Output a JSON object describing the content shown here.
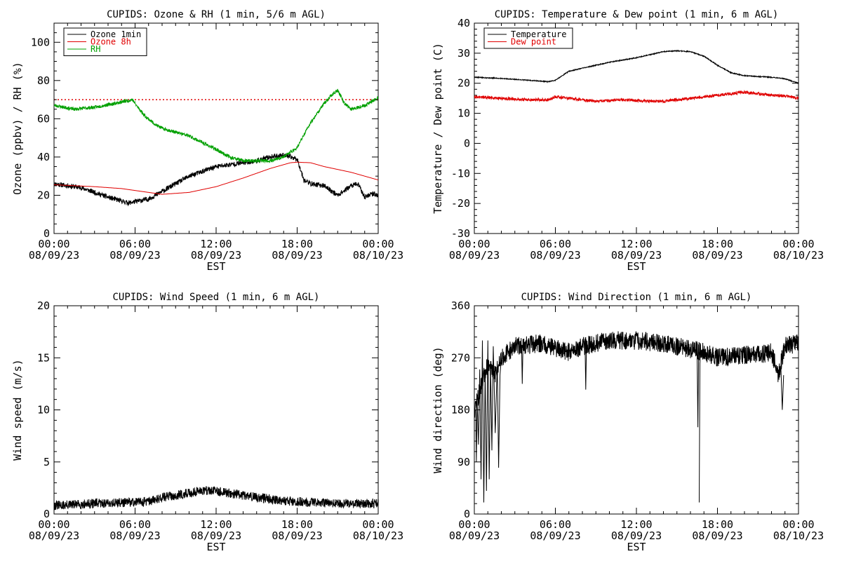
{
  "chart_data": [
    {
      "type": "line",
      "title": "CUPIDS: Ozone & RH (1 min, 5/6 m AGL)",
      "xlabel": "EST",
      "ylabel": "Ozone (ppbv) / RH (%)",
      "ylim": [
        0,
        110
      ],
      "yticks": [
        "0",
        "20",
        "40",
        "60",
        "80",
        "100"
      ],
      "xticks": [
        {
          "time": "00:00",
          "date": "08/09/23"
        },
        {
          "time": "06:00",
          "date": "08/09/23"
        },
        {
          "time": "12:00",
          "date": "08/09/23"
        },
        {
          "time": "18:00",
          "date": "08/09/23"
        },
        {
          "time": "00:00",
          "date": "08/10/23"
        }
      ],
      "xlim_hours": [
        0,
        24
      ],
      "legend_position": "top-left",
      "reference_line": {
        "y": 70,
        "color": "#e00000",
        "style": "dotted"
      },
      "series": [
        {
          "name": "Ozone 1min",
          "color": "#000000",
          "noise": 1.3,
          "seed": 11,
          "points": [
            [
              0,
              26
            ],
            [
              2,
              24
            ],
            [
              4,
              19
            ],
            [
              5.5,
              16
            ],
            [
              7,
              18
            ],
            [
              8,
              22
            ],
            [
              10,
              30
            ],
            [
              12,
              35
            ],
            [
              14,
              37
            ],
            [
              15,
              38
            ],
            [
              16,
              40
            ],
            [
              17,
              41
            ],
            [
              18,
              39
            ],
            [
              18.5,
              28
            ],
            [
              19,
              26
            ],
            [
              20,
              25
            ],
            [
              21,
              20
            ],
            [
              22,
              25
            ],
            [
              22.5,
              26
            ],
            [
              23,
              19
            ],
            [
              23.5,
              21
            ],
            [
              24,
              20
            ]
          ]
        },
        {
          "name": "Ozone 8h",
          "color": "#e00000",
          "noise": 0,
          "seed": 1,
          "points": [
            [
              0,
              25.5
            ],
            [
              3,
              24.5
            ],
            [
              5,
              23.5
            ],
            [
              7,
              21.5
            ],
            [
              8,
              20.5
            ],
            [
              10,
              21.5
            ],
            [
              12,
              24.5
            ],
            [
              14,
              29
            ],
            [
              16,
              34
            ],
            [
              17.5,
              37
            ],
            [
              18,
              37.3
            ],
            [
              19,
              37
            ],
            [
              20,
              35
            ],
            [
              22,
              32
            ],
            [
              24,
              28
            ]
          ]
        },
        {
          "name": "RH",
          "color": "#00a000",
          "noise": 0.9,
          "seed": 23,
          "points": [
            [
              0,
              67
            ],
            [
              1.5,
              65
            ],
            [
              3,
              66
            ],
            [
              4.5,
              68
            ],
            [
              5.8,
              70
            ],
            [
              6.2,
              66
            ],
            [
              6.8,
              61
            ],
            [
              7.5,
              57
            ],
            [
              8,
              55
            ],
            [
              10,
              51
            ],
            [
              12,
              44
            ],
            [
              13,
              40
            ],
            [
              14,
              38
            ],
            [
              15,
              38
            ],
            [
              16,
              38
            ],
            [
              17,
              40
            ],
            [
              18,
              45
            ],
            [
              19,
              58
            ],
            [
              20,
              68
            ],
            [
              20.5,
              72
            ],
            [
              21,
              75
            ],
            [
              21.5,
              68
            ],
            [
              22,
              65
            ],
            [
              23,
              67
            ],
            [
              23.5,
              69
            ],
            [
              24,
              71
            ]
          ]
        }
      ]
    },
    {
      "type": "line",
      "title": "CUPIDS: Temperature & Dew point (1 min, 6 m AGL)",
      "xlabel": "EST",
      "ylabel": "Temperature / Dew point (C)",
      "ylim": [
        -30,
        40
      ],
      "yticks": [
        "-30",
        "-20",
        "-10",
        "0",
        "10",
        "20",
        "30",
        "40"
      ],
      "xticks": [
        {
          "time": "00:00",
          "date": "08/09/23"
        },
        {
          "time": "06:00",
          "date": "08/09/23"
        },
        {
          "time": "12:00",
          "date": "08/09/23"
        },
        {
          "time": "18:00",
          "date": "08/09/23"
        },
        {
          "time": "00:00",
          "date": "08/10/23"
        }
      ],
      "xlim_hours": [
        0,
        24
      ],
      "legend_position": "top-left",
      "series": [
        {
          "name": "Temperature",
          "color": "#000000",
          "noise": 0.15,
          "seed": 5,
          "points": [
            [
              0,
              22
            ],
            [
              2,
              21.6
            ],
            [
              4,
              21
            ],
            [
              5.5,
              20.5
            ],
            [
              6,
              21
            ],
            [
              7,
              24
            ],
            [
              8,
              25
            ],
            [
              10,
              27
            ],
            [
              12,
              28.5
            ],
            [
              13,
              29.5
            ],
            [
              14,
              30.5
            ],
            [
              15,
              30.8
            ],
            [
              16,
              30.5
            ],
            [
              17,
              29
            ],
            [
              18,
              26
            ],
            [
              19,
              23.5
            ],
            [
              20,
              22.5
            ],
            [
              22,
              22
            ],
            [
              23,
              21.5
            ],
            [
              24,
              20
            ]
          ]
        },
        {
          "name": "Dew point",
          "color": "#e00000",
          "noise": 0.5,
          "seed": 9,
          "points": [
            [
              0,
              15.5
            ],
            [
              2,
              15
            ],
            [
              4,
              14.5
            ],
            [
              5.5,
              14.5
            ],
            [
              6,
              15.5
            ],
            [
              7,
              15
            ],
            [
              9,
              14
            ],
            [
              11,
              14.5
            ],
            [
              13,
              14
            ],
            [
              14,
              14
            ],
            [
              16,
              15
            ],
            [
              18,
              16
            ],
            [
              19,
              16.5
            ],
            [
              20,
              17
            ],
            [
              21,
              16.5
            ],
            [
              22,
              16
            ],
            [
              23,
              15.8
            ],
            [
              24,
              15
            ]
          ]
        }
      ]
    },
    {
      "type": "line",
      "title": "CUPIDS: Wind Speed (1 min, 6 m AGL)",
      "xlabel": "EST",
      "ylabel": "Wind speed (m/s)",
      "ylim": [
        0,
        20
      ],
      "yticks": [
        "0",
        "5",
        "10",
        "15",
        "20"
      ],
      "xticks": [
        {
          "time": "00:00",
          "date": "08/09/23"
        },
        {
          "time": "06:00",
          "date": "08/09/23"
        },
        {
          "time": "12:00",
          "date": "08/09/23"
        },
        {
          "time": "18:00",
          "date": "08/09/23"
        },
        {
          "time": "00:00",
          "date": "08/10/23"
        }
      ],
      "xlim_hours": [
        0,
        24
      ],
      "series": [
        {
          "name": "",
          "color": "#000000",
          "noise": 0.45,
          "seed": 31,
          "points": [
            [
              0,
              0.8
            ],
            [
              3,
              1.0
            ],
            [
              5,
              1.1
            ],
            [
              7,
              1.2
            ],
            [
              8,
              1.6
            ],
            [
              10,
              2.0
            ],
            [
              11,
              2.3
            ],
            [
              12,
              2.2
            ],
            [
              13,
              2.0
            ],
            [
              14,
              1.8
            ],
            [
              15,
              1.6
            ],
            [
              17,
              1.3
            ],
            [
              19,
              1.1
            ],
            [
              21,
              1.0
            ],
            [
              23,
              1.0
            ],
            [
              24,
              1.0
            ]
          ]
        }
      ]
    },
    {
      "type": "line",
      "title": "CUPIDS: Wind Direction (1 min, 6 m AGL)",
      "xlabel": "EST",
      "ylabel": "Wind direction (deg)",
      "ylim": [
        0,
        360
      ],
      "yticks": [
        "0",
        "90",
        "180",
        "270",
        "360"
      ],
      "xticks": [
        {
          "time": "00:00",
          "date": "08/09/23"
        },
        {
          "time": "06:00",
          "date": "08/09/23"
        },
        {
          "time": "12:00",
          "date": "08/09/23"
        },
        {
          "time": "18:00",
          "date": "08/09/23"
        },
        {
          "time": "00:00",
          "date": "08/10/23"
        }
      ],
      "xlim_hours": [
        0,
        24
      ],
      "series": [
        {
          "name": "",
          "color": "#000000",
          "noise": 16,
          "seed": 47,
          "points": [
            [
              0,
              180
            ],
            [
              0.5,
              220
            ],
            [
              1,
              260
            ],
            [
              1.5,
              240
            ],
            [
              2,
              270
            ],
            [
              3,
              290
            ],
            [
              5,
              295
            ],
            [
              7,
              280
            ],
            [
              8,
              290
            ],
            [
              10,
              300
            ],
            [
              12,
              300
            ],
            [
              14,
              295
            ],
            [
              16,
              285
            ],
            [
              17,
              280
            ],
            [
              18,
              270
            ],
            [
              20,
              275
            ],
            [
              21,
              275
            ],
            [
              22,
              280
            ],
            [
              22.5,
              240
            ],
            [
              23,
              290
            ],
            [
              24,
              295
            ]
          ]
        },
        {
          "name": "",
          "color": "#000000",
          "noise": 0,
          "seed": 2,
          "spikes": true,
          "points": [
            [
              0.1,
              180
            ],
            [
              0.15,
              90
            ],
            [
              0.2,
              200
            ],
            [
              0.3,
              120
            ],
            [
              0.4,
              250
            ],
            [
              0.5,
              60
            ],
            [
              0.6,
              300
            ],
            [
              0.7,
              20
            ],
            [
              0.8,
              250
            ],
            [
              0.9,
              40
            ],
            [
              1.0,
              300
            ],
            [
              1.1,
              60
            ],
            [
              1.2,
              260
            ],
            [
              1.3,
              110
            ],
            [
              1.4,
              290
            ],
            [
              1.55,
              140
            ],
            [
              1.7,
              260
            ],
            [
              1.8,
              80
            ],
            [
              1.9,
              240
            ],
            [
              2.0,
              270
            ]
          ]
        },
        {
          "name": "",
          "color": "#000000",
          "noise": 0,
          "seed": 3,
          "spikes": true,
          "points": [
            [
              16.5,
              270
            ],
            [
              16.55,
              150
            ],
            [
              16.6,
              270
            ],
            [
              16.65,
              20
            ],
            [
              16.7,
              260
            ],
            [
              16.75,
              280
            ],
            [
              8.2,
              290
            ],
            [
              8.25,
              215
            ],
            [
              8.3,
              290
            ],
            [
              3.5,
              290
            ],
            [
              3.55,
              225
            ],
            [
              3.6,
              290
            ],
            [
              22.7,
              250
            ],
            [
              22.8,
              180
            ],
            [
              22.9,
              240
            ]
          ]
        }
      ]
    }
  ]
}
